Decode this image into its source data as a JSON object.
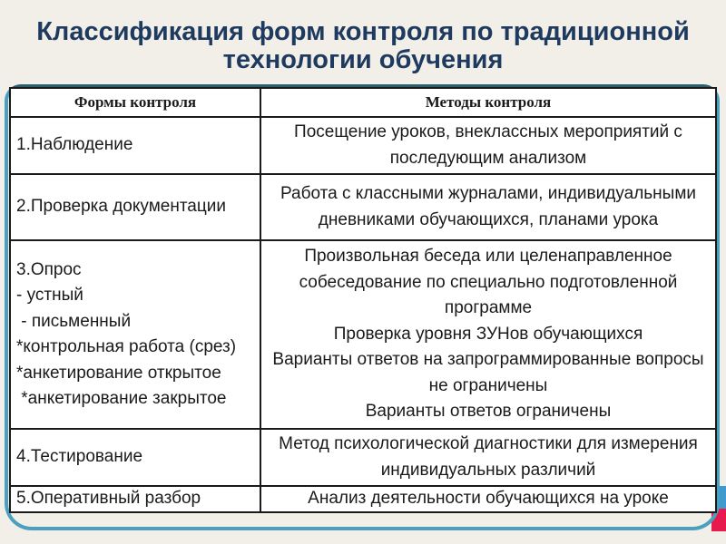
{
  "slide": {
    "title": "Классификация форм контроля по традиционной технологии обучения",
    "colors": {
      "background": "#F2EFE8",
      "title_text": "#1E3A5F",
      "frame_teal": "#4AA0BE",
      "frame_teal_dark": "#2B5E6C",
      "table_border": "#1A1A1A",
      "cell_background": "#FFFFFF",
      "ribbon_blue": "#3D9BD0",
      "ribbon_red": "#E81A4D"
    }
  },
  "table": {
    "headers": [
      "Формы контроля",
      "Методы контроля"
    ],
    "rows": [
      {
        "form": "1.Наблюдение",
        "method": "Посещение уроков, внеклассных мероприятий с последующим анализом"
      },
      {
        "form": "2.Проверка документации",
        "method": "Работа с классными журналами, индивидуальными дневниками обучающихся, планами урока"
      },
      {
        "form": "3.Опрос\n- устный\n - письменный\n*контрольная работа (срез)\n*анкетирование открытое\n *анкетирование закрытое",
        "method": "Произвольная беседа или целенаправленное собеседование по специально подготовленной программе\nПроверка уровня ЗУНов обучающихся\nВарианты ответов на запрограммированные вопросы не ограничены\nВарианты ответов ограничены"
      },
      {
        "form": "4.Тестирование",
        "method": "Метод психологической диагностики для измерения индивидуальных различий"
      },
      {
        "form": "5.Оперативный разбор",
        "method": "Анализ деятельности обучающихся на уроке"
      }
    ]
  }
}
